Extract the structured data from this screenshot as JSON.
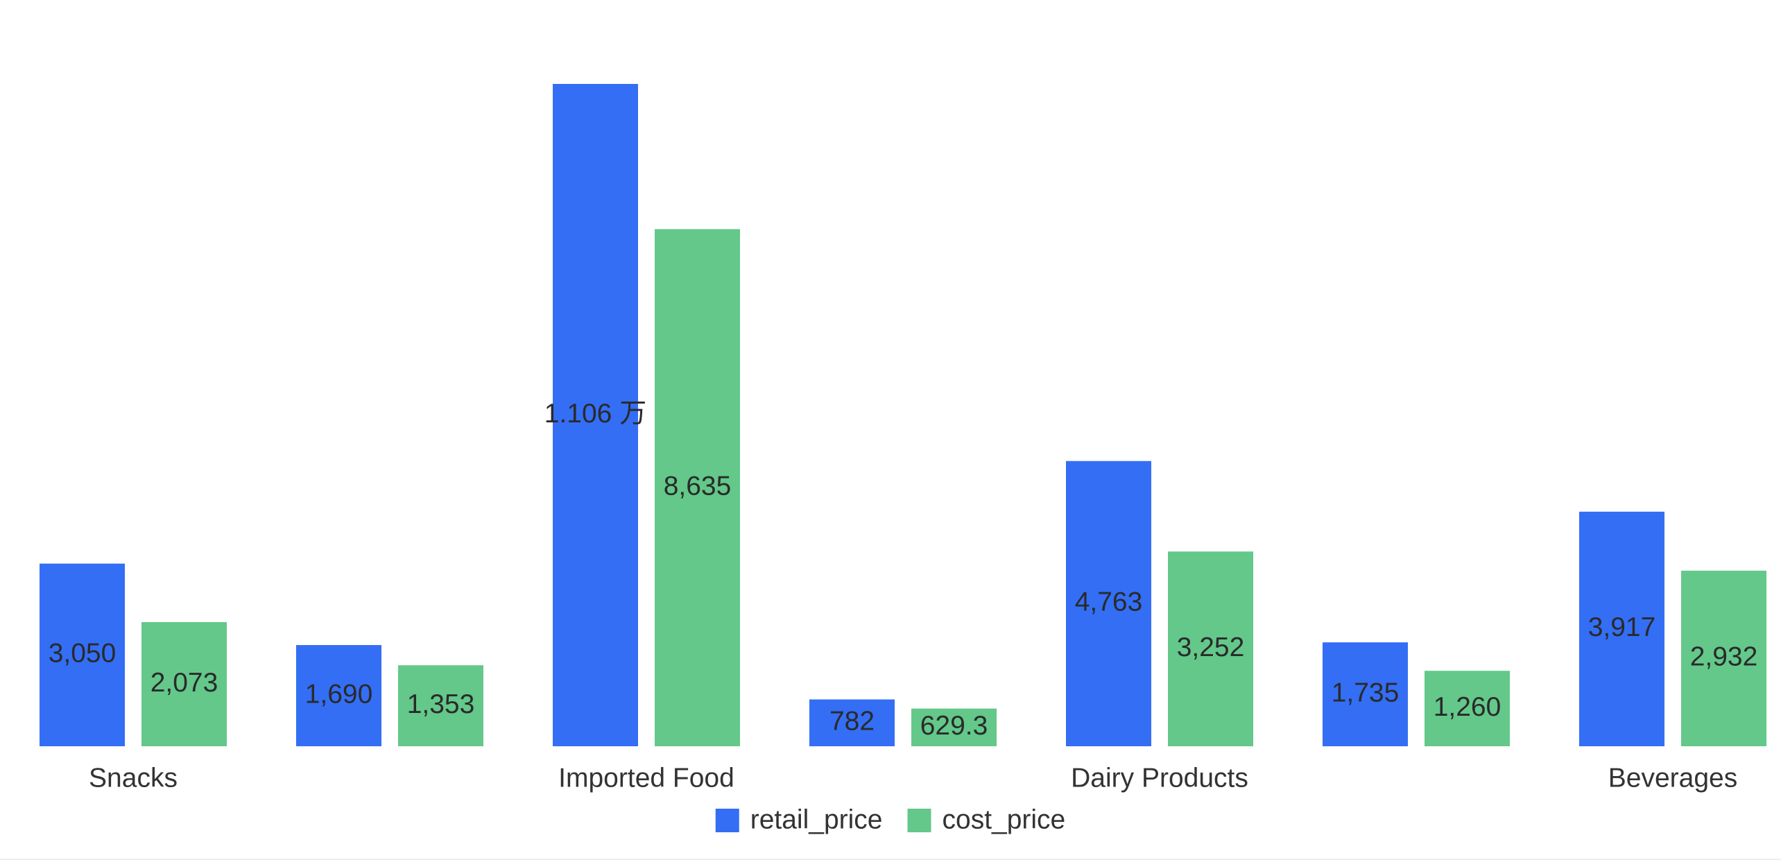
{
  "chart_data": {
    "type": "bar",
    "categories": [
      "Snacks",
      null,
      "Imported Food",
      null,
      "Dairy Products",
      null,
      "Beverages"
    ],
    "series": [
      {
        "name": "retail_price",
        "color": "#336ef5",
        "values": [
          3050,
          1690,
          11060,
          782,
          4763,
          1735,
          3917
        ],
        "value_labels": [
          "3,050",
          "1,690",
          "1.106 万",
          "782",
          "4,763",
          "1,735",
          "3,917"
        ]
      },
      {
        "name": "cost_price",
        "color": "#63c88a",
        "values": [
          2073,
          1353,
          8635,
          629.3,
          3252,
          1260,
          2932
        ],
        "value_labels": [
          "2,073",
          "1,353",
          "8,635",
          "629.3",
          "3,252",
          "1,260",
          "2,932"
        ]
      }
    ],
    "legend": "bottom"
  }
}
